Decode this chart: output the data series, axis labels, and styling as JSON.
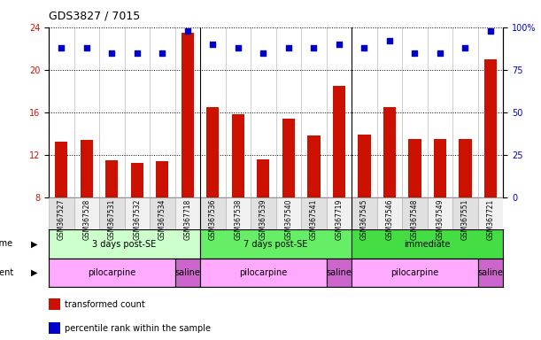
{
  "title": "GDS3827 / 7015",
  "samples": [
    "GSM367527",
    "GSM367528",
    "GSM367531",
    "GSM367532",
    "GSM367534",
    "GSM367718",
    "GSM367536",
    "GSM367538",
    "GSM367539",
    "GSM367540",
    "GSM367541",
    "GSM367719",
    "GSM367545",
    "GSM367546",
    "GSM367548",
    "GSM367549",
    "GSM367551",
    "GSM367721"
  ],
  "transformed_count": [
    13.2,
    13.4,
    11.5,
    11.2,
    11.4,
    23.5,
    16.5,
    15.8,
    11.6,
    15.4,
    13.8,
    18.5,
    13.9,
    16.5,
    13.5,
    13.5,
    13.5,
    21.0
  ],
  "percentile_rank": [
    88,
    88,
    85,
    85,
    85,
    98,
    90,
    88,
    85,
    88,
    88,
    90,
    88,
    92,
    85,
    85,
    88,
    98
  ],
  "ylim_left": [
    8,
    24
  ],
  "ylim_right": [
    0,
    100
  ],
  "yticks_left": [
    8,
    12,
    16,
    20,
    24
  ],
  "yticks_right": [
    0,
    25,
    50,
    75,
    100
  ],
  "bar_color": "#cc1100",
  "dot_color": "#0000cc",
  "time_groups": [
    {
      "label": "3 days post-SE",
      "start": 0,
      "end": 5,
      "color": "#ccffcc"
    },
    {
      "label": "7 days post-SE",
      "start": 6,
      "end": 11,
      "color": "#66ee66"
    },
    {
      "label": "immediate",
      "start": 12,
      "end": 17,
      "color": "#44dd44"
    }
  ],
  "agent_groups": [
    {
      "label": "pilocarpine",
      "start": 0,
      "end": 4,
      "color": "#ffaaff"
    },
    {
      "label": "saline",
      "start": 5,
      "end": 5,
      "color": "#cc66cc"
    },
    {
      "label": "pilocarpine",
      "start": 6,
      "end": 10,
      "color": "#ffaaff"
    },
    {
      "label": "saline",
      "start": 11,
      "end": 11,
      "color": "#cc66cc"
    },
    {
      "label": "pilocarpine",
      "start": 12,
      "end": 16,
      "color": "#ffaaff"
    },
    {
      "label": "saline",
      "start": 17,
      "end": 17,
      "color": "#cc66cc"
    }
  ],
  "legend_items": [
    {
      "label": "transformed count",
      "color": "#cc1100"
    },
    {
      "label": "percentile rank within the sample",
      "color": "#0000cc"
    }
  ],
  "sample_cell_colors": [
    "#e0e0e0",
    "#f0f0f0"
  ]
}
